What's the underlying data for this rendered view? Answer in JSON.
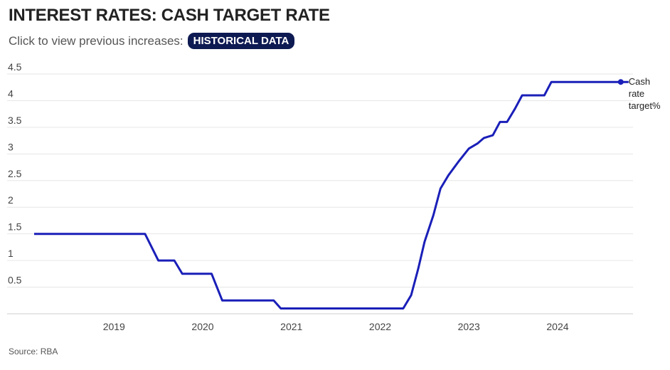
{
  "header": {
    "title": "INTEREST RATES: CASH TARGET RATE",
    "subtitle": "Click to view previous increases:",
    "button_label": "HISTORICAL DATA"
  },
  "footer": {
    "source": "Source: RBA"
  },
  "colors": {
    "line": "#1a1fb8",
    "button_bg": "#0e1a52",
    "grid": "#e6e6e6"
  },
  "chart_data": {
    "type": "line",
    "title": "INTEREST RATES: CASH TARGET RATE",
    "xlabel": "",
    "ylabel": "",
    "ylim": [
      0,
      4.5
    ],
    "xlim": [
      2018.1,
      2024.85
    ],
    "y_ticks": [
      0.5,
      1,
      1.5,
      2,
      2.5,
      3,
      3.5,
      4,
      4.5
    ],
    "y_tick_labels": [
      "0.5",
      "1",
      "1.5",
      "2",
      "2.5",
      "3",
      "3.5",
      "4",
      "4.5"
    ],
    "x_ticks": [
      2019,
      2020,
      2021,
      2022,
      2023,
      2024
    ],
    "x_tick_labels": [
      "2019",
      "2020",
      "2021",
      "2022",
      "2023",
      "2024"
    ],
    "grid": true,
    "end_label": [
      "Cash",
      "rate",
      "target%"
    ],
    "series": [
      {
        "name": "Cash rate target%",
        "x": [
          2018.1,
          2019.35,
          2019.5,
          2019.68,
          2019.77,
          2020.1,
          2020.16,
          2020.22,
          2020.8,
          2020.88,
          2022.26,
          2022.35,
          2022.43,
          2022.5,
          2022.6,
          2022.68,
          2022.77,
          2022.88,
          2023.0,
          2023.1,
          2023.17,
          2023.27,
          2023.35,
          2023.43,
          2023.52,
          2023.6,
          2023.85,
          2023.93,
          2024.8
        ],
        "values": [
          1.5,
          1.5,
          1.0,
          1.0,
          0.75,
          0.75,
          0.5,
          0.25,
          0.25,
          0.1,
          0.1,
          0.35,
          0.85,
          1.35,
          1.85,
          2.35,
          2.6,
          2.85,
          3.1,
          3.2,
          3.3,
          3.35,
          3.6,
          3.6,
          3.85,
          4.1,
          4.1,
          4.35,
          4.35
        ]
      }
    ]
  }
}
